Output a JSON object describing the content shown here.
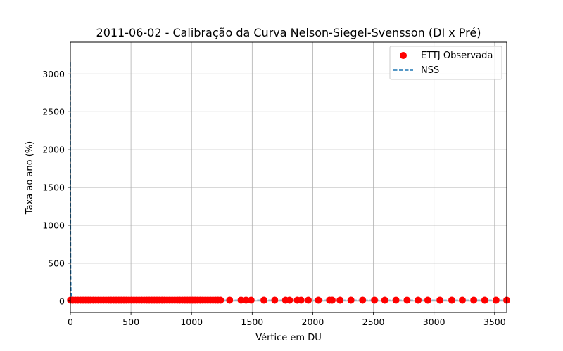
{
  "chart_data": {
    "type": "scatter",
    "title": "2011-06-02 - Calibração da Curva Nelson-Siegel-Svensson (DI x Pré)",
    "xlabel": "Vértice em DU",
    "ylabel": "Taxa ao ano (%)",
    "xlim": [
      0,
      3600
    ],
    "ylim": [
      -150,
      3420
    ],
    "x_ticks": [
      "0",
      "500",
      "1000",
      "1500",
      "2000",
      "2500",
      "3000",
      "3500"
    ],
    "y_ticks": [
      "0",
      "500",
      "1000",
      "1500",
      "2000",
      "2500",
      "3000"
    ],
    "grid": true,
    "legend_position": "top-right",
    "series": [
      {
        "name": "ETTJ Observada",
        "kind": "scatter",
        "color": "#ff0000",
        "x": [
          1,
          21,
          42,
          63,
          84,
          105,
          126,
          147,
          168,
          189,
          210,
          231,
          252,
          273,
          294,
          315,
          336,
          357,
          378,
          399,
          420,
          441,
          462,
          483,
          504,
          525,
          546,
          567,
          588,
          609,
          630,
          651,
          672,
          693,
          714,
          735,
          756,
          777,
          798,
          819,
          840,
          861,
          882,
          903,
          924,
          945,
          966,
          987,
          1008,
          1029,
          1050,
          1071,
          1092,
          1113,
          1134,
          1155,
          1176,
          1197,
          1218,
          1239,
          1314,
          1408,
          1449,
          1491,
          1597,
          1686,
          1775,
          1808,
          1872,
          1903,
          1963,
          2046,
          2138,
          2160,
          2225,
          2315,
          2411,
          2509,
          2594,
          2686,
          2778,
          2869,
          2949,
          3049,
          3147,
          3234,
          3328,
          3419,
          3512,
          3600
        ],
        "y": [
          12.1,
          12.1,
          12.2,
          12.3,
          12.3,
          12.4,
          12.5,
          12.5,
          12.6,
          12.6,
          12.6,
          12.7,
          12.7,
          12.7,
          12.7,
          12.7,
          12.7,
          12.7,
          12.7,
          12.7,
          12.7,
          12.7,
          12.7,
          12.7,
          12.7,
          12.7,
          12.6,
          12.6,
          12.6,
          12.6,
          12.6,
          12.6,
          12.6,
          12.6,
          12.6,
          12.6,
          12.6,
          12.5,
          12.5,
          12.5,
          12.5,
          12.5,
          12.5,
          12.5,
          12.5,
          12.5,
          12.5,
          12.5,
          12.5,
          12.5,
          12.5,
          12.5,
          12.4,
          12.4,
          12.4,
          12.4,
          12.4,
          12.4,
          12.4,
          12.4,
          12.4,
          12.3,
          12.3,
          12.3,
          12.3,
          12.3,
          12.3,
          12.3,
          12.2,
          12.2,
          12.2,
          12.2,
          12.2,
          12.2,
          12.2,
          12.2,
          12.1,
          12.1,
          12.1,
          12.1,
          12.1,
          12.1,
          12.1,
          12.1,
          12.1,
          12.0,
          12.0,
          12.0,
          12.0,
          12.0
        ]
      },
      {
        "name": "NSS",
        "kind": "line",
        "style": "dashed",
        "color": "#1f77b4",
        "x": [
          0,
          1,
          2,
          3,
          5,
          10,
          20,
          50,
          100,
          250,
          500,
          1000,
          1500,
          2000,
          2500,
          3000,
          3600
        ],
        "y": [
          3150,
          1800,
          900,
          400,
          150,
          45,
          20,
          13,
          12.5,
          12.7,
          12.7,
          12.5,
          12.3,
          12.2,
          12.1,
          12.1,
          12.0
        ]
      }
    ]
  }
}
